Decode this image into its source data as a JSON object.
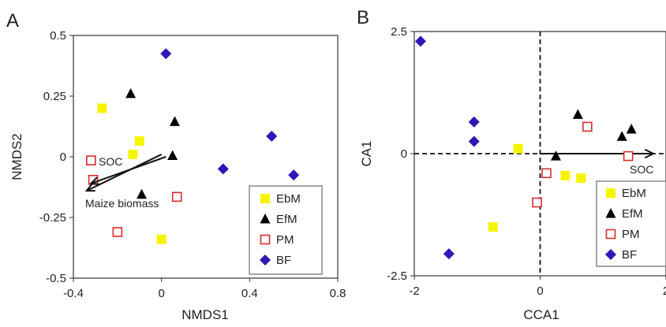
{
  "colors": {
    "EbM": "#f5f500",
    "EfM": "#000000",
    "PM": "#d92b2b",
    "BF": "#2b18b5"
  },
  "chart_data": [
    {
      "type": "scatter",
      "panel_label": "A",
      "xlabel": "NMDS1",
      "ylabel": "NMDS2",
      "xlim": [
        -0.4,
        0.8
      ],
      "ylim": [
        -0.5,
        0.5
      ],
      "xticks": [
        -0.4,
        0,
        0.4,
        0.8
      ],
      "xtick_labels": [
        "-0.4",
        "0",
        "0.4",
        "0.8"
      ],
      "yticks": [
        0.5,
        0.25,
        0,
        -0.25,
        -0.5
      ],
      "ytick_labels": [
        "0.5",
        "0.25",
        "0",
        "-0.25",
        "-0.5"
      ],
      "grid": false,
      "legend_position": "bottom-right",
      "series": [
        {
          "name": "EbM",
          "marker": "square",
          "points": [
            [
              -0.27,
              0.2
            ],
            [
              -0.1,
              0.065
            ],
            [
              -0.13,
              0.01
            ],
            [
              0.0,
              -0.34
            ]
          ]
        },
        {
          "name": "EfM",
          "marker": "triangle",
          "points": [
            [
              -0.14,
              0.26
            ],
            [
              0.06,
              0.145
            ],
            [
              0.05,
              0.005
            ],
            [
              -0.09,
              -0.155
            ]
          ]
        },
        {
          "name": "PM",
          "marker": "open-square",
          "points": [
            [
              -0.32,
              -0.015
            ],
            [
              -0.31,
              -0.095
            ],
            [
              0.07,
              -0.165
            ],
            [
              -0.2,
              -0.31
            ]
          ]
        },
        {
          "name": "BF",
          "marker": "diamond",
          "points": [
            [
              0.02,
              0.425
            ],
            [
              0.5,
              0.085
            ],
            [
              0.28,
              -0.05
            ],
            [
              0.6,
              -0.075
            ]
          ]
        }
      ],
      "vectors": [
        {
          "label": "SOC",
          "from": [
            0.02,
            0.0
          ],
          "to": [
            -0.32,
            -0.11
          ]
        },
        {
          "label": "Maize biomass",
          "from": [
            0.0,
            0.01
          ],
          "to": [
            -0.34,
            -0.14
          ]
        }
      ]
    },
    {
      "type": "scatter",
      "panel_label": "B",
      "xlabel": "CCA1",
      "ylabel": "CA1",
      "xlim": [
        -2,
        2
      ],
      "ylim": [
        -2.5,
        2.5
      ],
      "xticks": [
        -2,
        0,
        2
      ],
      "xtick_labels": [
        "-2",
        "0",
        "2"
      ],
      "yticks": [
        2.5,
        0,
        -2.5
      ],
      "ytick_labels": [
        "2.5",
        "0",
        "-2.5"
      ],
      "grid": false,
      "reference_lines": {
        "x": 0,
        "y": 0,
        "style": "dashed"
      },
      "legend_position": "bottom-right",
      "series": [
        {
          "name": "EbM",
          "marker": "square",
          "points": [
            [
              -0.75,
              -1.5
            ],
            [
              -0.35,
              0.1
            ],
            [
              0.4,
              -0.45
            ],
            [
              0.65,
              -0.5
            ]
          ]
        },
        {
          "name": "EfM",
          "marker": "triangle",
          "points": [
            [
              0.25,
              -0.05
            ],
            [
              0.6,
              0.8
            ],
            [
              1.3,
              0.35
            ],
            [
              1.45,
              0.5
            ]
          ]
        },
        {
          "name": "PM",
          "marker": "open-square",
          "points": [
            [
              0.75,
              0.55
            ],
            [
              0.1,
              -0.4
            ],
            [
              -0.05,
              -1.0
            ],
            [
              1.4,
              -0.05
            ]
          ]
        },
        {
          "name": "BF",
          "marker": "diamond",
          "points": [
            [
              -1.9,
              2.3
            ],
            [
              -1.05,
              0.65
            ],
            [
              -1.05,
              0.25
            ],
            [
              -1.45,
              -2.05
            ]
          ]
        }
      ],
      "vectors": [
        {
          "label": "SOC",
          "from": [
            0,
            0
          ],
          "to": [
            1.8,
            0
          ]
        }
      ]
    }
  ]
}
